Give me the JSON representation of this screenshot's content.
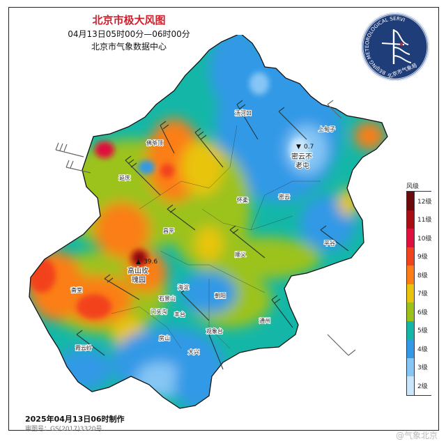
{
  "header": {
    "title": "北京市极大风图",
    "time_range": "04月13日05时00分—06时00分",
    "organization": "北京市气象数据中心"
  },
  "logo": {
    "ring_text": "BEIJING METEOROLOGICAL SERVICE",
    "chinese_text": "北京市气象局",
    "background": "#1f3d78"
  },
  "map": {
    "extremes": [
      {
        "type": "max",
        "marker": "▲",
        "value": "39.6",
        "station": "高山玫瑰园",
        "station_line1": "高山玫",
        "station_line2": "瑰园"
      },
      {
        "type": "min",
        "marker": "▼",
        "value": "0.7",
        "station": "密云不老屯",
        "station_line1": "密云不",
        "station_line2": "老屯"
      }
    ],
    "places": [
      {
        "name": "汤河口"
      },
      {
        "name": "上甸子"
      },
      {
        "name": "佛爷顶"
      },
      {
        "name": "延庆"
      },
      {
        "name": "怀柔"
      },
      {
        "name": "密云"
      },
      {
        "name": "昌平"
      },
      {
        "name": "平谷"
      },
      {
        "name": "顺义"
      },
      {
        "name": "斋堂"
      },
      {
        "name": "海淀"
      },
      {
        "name": "石景山"
      },
      {
        "name": "朝阳"
      },
      {
        "name": "门头沟"
      },
      {
        "name": "丰台"
      },
      {
        "name": "通州"
      },
      {
        "name": "观象台"
      },
      {
        "name": "房山"
      },
      {
        "name": "大兴"
      },
      {
        "name": "霞云岭"
      }
    ]
  },
  "legend": {
    "title": "风级",
    "levels": [
      {
        "label": "12级",
        "color": "#6b0a0a"
      },
      {
        "label": "11级",
        "color": "#a80d14"
      },
      {
        "label": "10级",
        "color": "#e0103e"
      },
      {
        "label": "9级",
        "color": "#f2431f"
      },
      {
        "label": "8级",
        "color": "#fb7e16"
      },
      {
        "label": "7级",
        "color": "#e9c40c"
      },
      {
        "label": "6级",
        "color": "#9cc21a"
      },
      {
        "label": "5级",
        "color": "#14b7a7"
      },
      {
        "label": "4级",
        "color": "#3399e6"
      },
      {
        "label": "3级",
        "color": "#86c6f5"
      },
      {
        "label": "2级",
        "color": "#c9e6fb"
      }
    ]
  },
  "footer": {
    "made_at": "2025年04月13日06时制作",
    "review_number": "审图号：GS(2017)3320号",
    "watermark": "@气象北京"
  }
}
